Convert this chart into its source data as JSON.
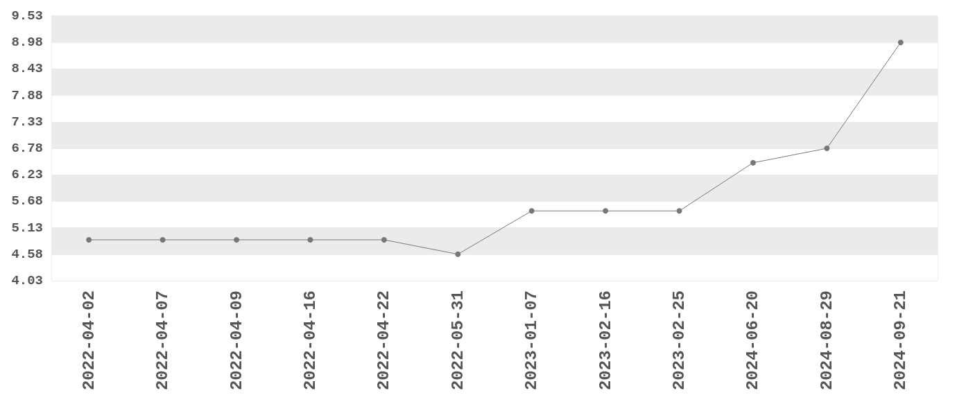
{
  "chart_data": {
    "type": "line",
    "categories": [
      "2022-04-02",
      "2022-04-07",
      "2022-04-09",
      "2022-04-16",
      "2022-04-22",
      "2022-05-31",
      "2023-01-07",
      "2023-02-16",
      "2023-02-25",
      "2024-06-20",
      "2024-08-29",
      "2024-09-21"
    ],
    "values": [
      4.88,
      4.88,
      4.88,
      4.88,
      4.88,
      4.58,
      5.48,
      5.48,
      5.48,
      6.48,
      6.78,
      8.98
    ],
    "color": "#777777",
    "ylim": [
      4.03,
      9.53
    ],
    "yticks": [
      4.03,
      4.58,
      5.13,
      5.68,
      6.23,
      6.78,
      7.33,
      7.88,
      8.43,
      8.98,
      9.53
    ],
    "grid": "y",
    "marker": "circle",
    "line_style": "solid"
  }
}
